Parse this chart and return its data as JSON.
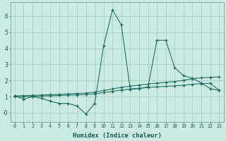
{
  "xlabel": "Humidex (Indice chaleur)",
  "background_color": "#cceae4",
  "grid_color": "#aad4cc",
  "line_color": "#1a6b5a",
  "xlim": [
    -0.5,
    23.5
  ],
  "ylim": [
    -0.55,
    6.85
  ],
  "xticks": [
    0,
    1,
    2,
    3,
    4,
    5,
    6,
    7,
    8,
    9,
    10,
    11,
    12,
    13,
    14,
    15,
    16,
    17,
    18,
    19,
    20,
    21,
    22,
    23
  ],
  "yticks": [
    0,
    1,
    2,
    3,
    4,
    5,
    6
  ],
  "ytick_labels": [
    "-0",
    "1",
    "2",
    "3",
    "4",
    "5",
    "6"
  ],
  "series1_x": [
    0,
    1,
    2,
    3,
    4,
    5,
    6,
    7,
    8,
    9,
    10,
    11,
    12,
    13,
    14,
    15,
    16,
    17,
    18,
    19,
    20,
    21,
    22,
    23
  ],
  "series1_y": [
    1.05,
    0.85,
    1.0,
    0.9,
    0.72,
    0.58,
    0.58,
    0.42,
    -0.08,
    0.58,
    4.15,
    6.4,
    5.45,
    1.45,
    1.5,
    1.6,
    4.5,
    4.5,
    2.8,
    2.3,
    2.15,
    1.85,
    1.5,
    1.38
  ],
  "series2_x": [
    0,
    1,
    2,
    3,
    4,
    5,
    6,
    7,
    8,
    9,
    10,
    11,
    12,
    13,
    14,
    15,
    16,
    17,
    18,
    19,
    20,
    21,
    22,
    23
  ],
  "series2_y": [
    1.05,
    1.06,
    1.08,
    1.1,
    1.12,
    1.14,
    1.17,
    1.2,
    1.22,
    1.28,
    1.38,
    1.48,
    1.58,
    1.65,
    1.72,
    1.78,
    1.84,
    1.89,
    1.94,
    2.02,
    2.12,
    2.17,
    2.2,
    2.23
  ],
  "series3_x": [
    0,
    1,
    2,
    3,
    4,
    5,
    6,
    7,
    8,
    9,
    10,
    11,
    12,
    13,
    14,
    15,
    16,
    17,
    18,
    19,
    20,
    21,
    22,
    23
  ],
  "series3_y": [
    1.0,
    1.0,
    1.02,
    1.04,
    1.05,
    1.07,
    1.09,
    1.11,
    1.13,
    1.17,
    1.25,
    1.33,
    1.41,
    1.47,
    1.52,
    1.57,
    1.61,
    1.64,
    1.67,
    1.71,
    1.77,
    1.81,
    1.83,
    1.4
  ]
}
